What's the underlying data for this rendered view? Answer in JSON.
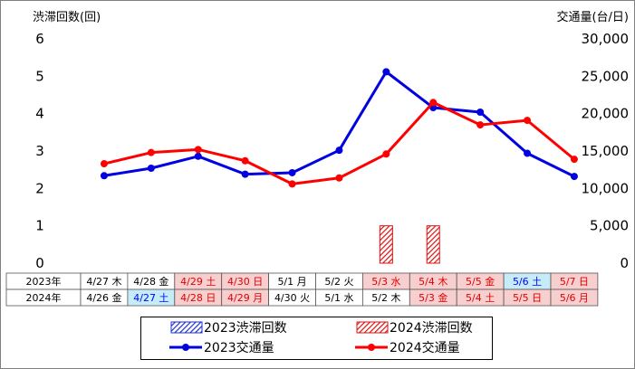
{
  "chart_data": {
    "type": "line",
    "y_left_title": "渋滞回数(回)",
    "y_right_title": "交通量(台/日)",
    "y_left_ticks": [
      "0",
      "1",
      "2",
      "3",
      "4",
      "5",
      "6"
    ],
    "y_right_ticks": [
      "0",
      "5,000",
      "10,000",
      "15,000",
      "20,000",
      "25,000",
      "30,000"
    ],
    "ylim_left": [
      0,
      6
    ],
    "ylim_right": [
      0,
      30000
    ],
    "row_labels": [
      "2023年",
      "2024年"
    ],
    "dates_2023": [
      "4/27 木",
      "4/28 金",
      "4/29 土",
      "4/30 日",
      "5/1 月",
      "5/2 火",
      "5/3 水",
      "5/4 木",
      "5/5 金",
      "5/6 土",
      "5/7 日"
    ],
    "dates_2024": [
      "4/26 金",
      "4/27 土",
      "4/28 日",
      "4/29 月",
      "4/30 火",
      "5/1 水",
      "5/2 木",
      "5/3 金",
      "5/4 土",
      "5/5 日",
      "5/6 月"
    ],
    "cell_fill_2023": [
      "#ffffff",
      "#ffffff",
      "#f8cfcf",
      "#f8cfcf",
      "#ffffff",
      "#ffffff",
      "#f8cfcf",
      "#f8cfcf",
      "#f8cfcf",
      "#c6ecf9",
      "#f8cfcf"
    ],
    "cell_fill_2024": [
      "#ffffff",
      "#c6ecf9",
      "#f8cfcf",
      "#f8cfcf",
      "#ffffff",
      "#ffffff",
      "#ffffff",
      "#f8cfcf",
      "#f8cfcf",
      "#f8cfcf",
      "#f8cfcf"
    ],
    "cell_text_color_2023": [
      "#000000",
      "#000000",
      "#e00000",
      "#e00000",
      "#000000",
      "#000000",
      "#e00000",
      "#e00000",
      "#e00000",
      "#0000ff",
      "#e00000"
    ],
    "cell_text_color_2024": [
      "#000000",
      "#0000ff",
      "#e00000",
      "#e00000",
      "#000000",
      "#000000",
      "#000000",
      "#e00000",
      "#e00000",
      "#e00000",
      "#e00000"
    ],
    "series": [
      {
        "name": "2023渋滞回数",
        "kind": "bar",
        "axis": "left",
        "color": "#1f2fd0",
        "values": [
          0,
          0,
          0,
          0,
          0,
          0,
          0,
          0,
          0,
          0,
          0
        ]
      },
      {
        "name": "2024渋滞回数",
        "kind": "bar",
        "axis": "left",
        "color": "#e01010",
        "values": [
          0,
          0,
          0,
          0,
          0,
          0,
          1,
          1,
          0,
          0,
          0
        ]
      },
      {
        "name": "2023交通量",
        "kind": "line",
        "axis": "right",
        "color": "#0000e0",
        "values": [
          11700,
          12700,
          14300,
          11900,
          12100,
          15100,
          25600,
          20800,
          20200,
          14700,
          11600
        ]
      },
      {
        "name": "2024交通量",
        "kind": "line",
        "axis": "right",
        "color": "#ff0000",
        "values": [
          13300,
          14800,
          15200,
          13700,
          10600,
          11400,
          14600,
          21500,
          18500,
          19100,
          13900
        ]
      }
    ],
    "grid": false,
    "legend_position": "bottom"
  }
}
